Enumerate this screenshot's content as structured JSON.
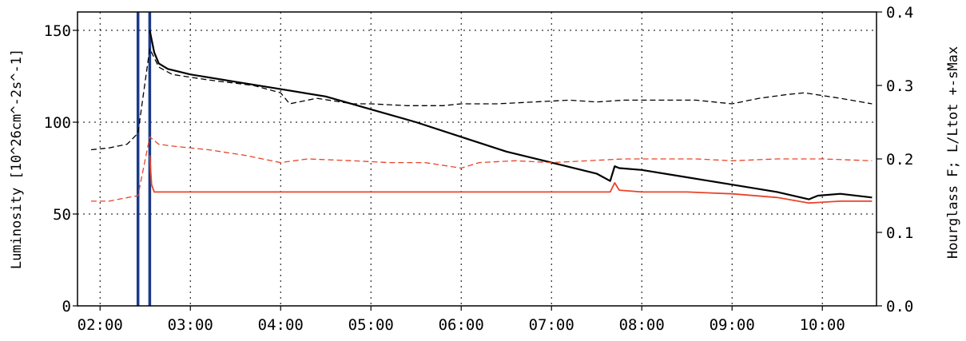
{
  "chart_data": {
    "type": "line",
    "title": "",
    "xlabel": "",
    "ylabel": "Luminosity [10^26cm^-2s^-1]",
    "y2label": "Hourglass F; L/Ltot +-sMax",
    "x_range_hours": [
      1.75,
      10.6
    ],
    "ylim": [
      0,
      160
    ],
    "y2lim": [
      0,
      0.4
    ],
    "grid": true,
    "x_tick_labels": [
      "02:00",
      "03:00",
      "04:00",
      "05:00",
      "06:00",
      "07:00",
      "08:00",
      "09:00",
      "10:00"
    ],
    "x_tick_hours": [
      2,
      3,
      4,
      5,
      6,
      7,
      8,
      9,
      10
    ],
    "y_ticks": [
      0,
      50,
      100,
      150
    ],
    "y2_ticks": [
      0.0,
      0.1,
      0.2,
      0.3,
      0.4
    ],
    "y2_tick_labels": [
      "0.0",
      "0.1",
      "0.2",
      "0.3",
      "0.4"
    ],
    "markers": [
      {
        "x": 2.42,
        "color": "#1a3a8a"
      },
      {
        "x": 2.55,
        "color": "#1a3a8a"
      }
    ],
    "series": [
      {
        "axis": "left",
        "color": "#000000",
        "style": "solid",
        "width": 2.2,
        "x": [
          2.55,
          2.6,
          2.65,
          2.75,
          3.0,
          3.5,
          4.0,
          4.5,
          5.0,
          5.5,
          6.0,
          6.5,
          7.0,
          7.5,
          7.65,
          7.7,
          7.75,
          8.0,
          8.5,
          9.0,
          9.5,
          9.85,
          9.95,
          10.2,
          10.55
        ],
        "y": [
          150,
          138,
          132,
          129,
          126,
          122,
          118,
          114,
          107,
          100,
          92,
          84,
          78,
          72,
          68,
          76,
          75,
          74,
          70,
          66,
          62,
          58,
          60,
          61,
          59
        ]
      },
      {
        "axis": "left",
        "color": "#000000",
        "style": "dashed",
        "width": 1.3,
        "x": [
          1.9,
          2.1,
          2.3,
          2.42,
          2.55,
          2.65,
          2.8,
          3.2,
          3.7,
          4.0,
          4.1,
          4.4,
          4.8,
          5.0,
          5.4,
          5.8,
          6.0,
          6.4,
          6.8,
          7.2,
          7.5,
          7.8,
          8.2,
          8.6,
          9.0,
          9.3,
          9.6,
          9.8,
          10.2,
          10.55
        ],
        "y": [
          85,
          86,
          88,
          94,
          140,
          130,
          126,
          123,
          120,
          116,
          110,
          113,
          110,
          110,
          109,
          109,
          110,
          110,
          111,
          112,
          111,
          112,
          112,
          112,
          110,
          113,
          115,
          116,
          113,
          110
        ]
      },
      {
        "axis": "left",
        "color": "#e8442a",
        "style": "solid",
        "width": 1.8,
        "x": [
          2.55,
          2.57,
          2.6,
          2.65,
          3.0,
          4.0,
          5.0,
          6.0,
          7.0,
          7.65,
          7.7,
          7.75,
          8.0,
          8.5,
          9.0,
          9.5,
          9.85,
          10.2,
          10.55
        ],
        "y": [
          82,
          66,
          62,
          62,
          62,
          62,
          62,
          62,
          62,
          62,
          67,
          63,
          62,
          62,
          61,
          59,
          56,
          57,
          57
        ]
      },
      {
        "axis": "left",
        "color": "#e8442a",
        "style": "dashed",
        "width": 1.3,
        "x": [
          1.9,
          2.1,
          2.2,
          2.42,
          2.55,
          2.65,
          2.8,
          3.2,
          3.6,
          3.8,
          4.0,
          4.3,
          4.8,
          5.2,
          5.6,
          6.0,
          6.2,
          6.6,
          7.0,
          7.4,
          7.8,
          8.2,
          8.6,
          9.0,
          9.5,
          10.0,
          10.55
        ],
        "y": [
          57,
          57,
          58,
          60,
          92,
          88,
          87,
          85,
          82,
          80,
          78,
          80,
          79,
          78,
          78,
          75,
          78,
          79,
          78,
          79,
          80,
          80,
          80,
          79,
          80,
          80,
          79
        ]
      }
    ]
  }
}
